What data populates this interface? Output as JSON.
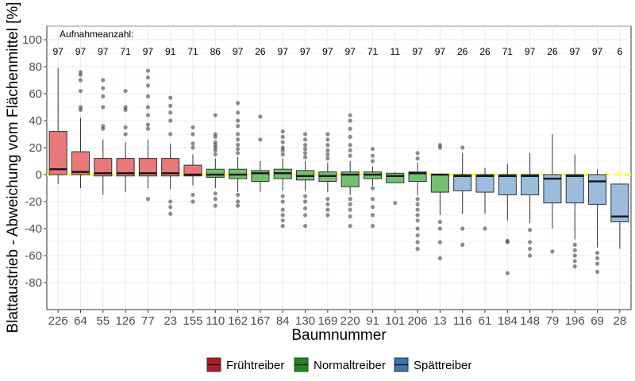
{
  "chart_data": {
    "type": "boxplot",
    "xlabel": "Baumnummer",
    "ylabel": "Blattaustrieb - Abweichung vom Flächenmittel [%]",
    "ylim": [
      -100,
      110
    ],
    "yticks": [
      -80,
      -60,
      -40,
      -20,
      0,
      20,
      40,
      60,
      80,
      100
    ],
    "grid": true,
    "reference_line": 0,
    "annotation": "Aufnahmeanzahl:",
    "legend_position": "bottom",
    "groups": [
      {
        "name": "Frühtreiber",
        "color": "#b2182b",
        "fill": "#e8787a"
      },
      {
        "name": "Normaltreiber",
        "color": "#1a8a1a",
        "fill": "#73c16f"
      },
      {
        "name": "Spättreiber",
        "color": "#3a78b2",
        "fill": "#9bbcdc"
      }
    ],
    "boxes": [
      {
        "tree": "226",
        "count": "97",
        "group": 0,
        "q1": 0,
        "median": 4,
        "q3": 32,
        "lo": -7,
        "hi": 79,
        "out": []
      },
      {
        "tree": "64",
        "count": "97",
        "group": 0,
        "q1": 0,
        "median": 2,
        "q3": 17,
        "lo": -10,
        "hi": 42,
        "out": [
          48,
          50,
          62,
          70,
          74,
          76
        ]
      },
      {
        "tree": "55",
        "count": "97",
        "group": 0,
        "q1": -1,
        "median": 1,
        "q3": 12,
        "lo": -15,
        "hi": 26,
        "out": [
          34,
          36,
          50,
          58,
          64,
          70
        ]
      },
      {
        "tree": "126",
        "count": "71",
        "group": 0,
        "q1": -1,
        "median": 1,
        "q3": 12,
        "lo": -13,
        "hi": 24,
        "out": [
          30,
          35,
          48,
          50,
          62
        ]
      },
      {
        "tree": "77",
        "count": "97",
        "group": 0,
        "q1": -1,
        "median": 1,
        "q3": 12,
        "lo": -10,
        "hi": 26,
        "out": [
          -18,
          34,
          37,
          44,
          50,
          58,
          66,
          72,
          77
        ]
      },
      {
        "tree": "23",
        "count": "91",
        "group": 0,
        "q1": -1,
        "median": 1,
        "q3": 12,
        "lo": -11,
        "hi": 23,
        "out": [
          -20,
          -24,
          -29,
          30,
          40,
          46,
          51,
          57
        ]
      },
      {
        "tree": "155",
        "count": "71",
        "group": 0,
        "q1": -1,
        "median": 0,
        "q3": 7,
        "lo": -8,
        "hi": 15,
        "out": [
          -15,
          -20,
          20,
          23,
          30,
          35
        ]
      },
      {
        "tree": "110",
        "count": "86",
        "group": 1,
        "q1": -2,
        "median": 0,
        "q3": 4,
        "lo": -10,
        "hi": 12,
        "out": [
          -14,
          -18,
          -23,
          15,
          18,
          20,
          22,
          24,
          28,
          30,
          44
        ]
      },
      {
        "tree": "162",
        "count": "97",
        "group": 1,
        "q1": -3,
        "median": 0,
        "q3": 4,
        "lo": -13,
        "hi": 13,
        "out": [
          -15,
          -20,
          -23,
          16,
          19,
          22,
          26,
          30,
          36,
          40,
          46,
          53
        ]
      },
      {
        "tree": "167",
        "count": "26",
        "group": 1,
        "q1": -5,
        "median": 1,
        "q3": 3,
        "lo": -13,
        "hi": 10,
        "out": [
          26,
          43
        ]
      },
      {
        "tree": "84",
        "count": "97",
        "group": 1,
        "q1": -3,
        "median": 1,
        "q3": 4,
        "lo": -12,
        "hi": 12,
        "out": [
          -16,
          -20,
          -26,
          -30,
          -34,
          -38,
          15,
          18,
          20,
          24,
          28,
          32
        ]
      },
      {
        "tree": "130",
        "count": "97",
        "group": 1,
        "q1": -4,
        "median": -1,
        "q3": 3,
        "lo": -12,
        "hi": 10,
        "out": [
          -16,
          -20,
          -25,
          -30,
          -38,
          13,
          16,
          19,
          22,
          26,
          30
        ]
      },
      {
        "tree": "169",
        "count": "97",
        "group": 1,
        "q1": -5,
        "median": -1,
        "q3": 2,
        "lo": -13,
        "hi": 9,
        "out": [
          -18,
          -22,
          -26,
          -30,
          12,
          15,
          18,
          22,
          26,
          30
        ]
      },
      {
        "tree": "220",
        "count": "97",
        "group": 1,
        "q1": -9,
        "median": 0,
        "q3": 2,
        "lo": -15,
        "hi": 10,
        "out": [
          -18,
          -22,
          -26,
          -31,
          -38,
          14,
          18,
          22,
          28,
          34,
          40,
          44
        ]
      },
      {
        "tree": "91",
        "count": "71",
        "group": 1,
        "q1": -3,
        "median": 0,
        "q3": 2,
        "lo": -8,
        "hi": 6,
        "out": [
          -10,
          -18,
          -24,
          -30,
          -38,
          10,
          14,
          19
        ]
      },
      {
        "tree": "101",
        "count": "11",
        "group": 1,
        "q1": -6,
        "median": -1,
        "q3": 1,
        "lo": -6,
        "hi": 2,
        "out": [
          -21
        ]
      },
      {
        "tree": "206",
        "count": "97",
        "group": 1,
        "q1": -5,
        "median": 1,
        "q3": 2,
        "lo": -15,
        "hi": 9,
        "out": [
          -18,
          -22,
          -26,
          -30,
          -34,
          -40,
          -45,
          -50,
          -55,
          12,
          16
        ]
      },
      {
        "tree": "13",
        "count": "97",
        "group": 1,
        "q1": -13,
        "median": 0,
        "q3": 0,
        "lo": -30,
        "hi": 0,
        "out": [
          -35,
          -40,
          -50,
          -62,
          20,
          22
        ]
      },
      {
        "tree": "116",
        "count": "26",
        "group": 2,
        "q1": -12,
        "median": -1,
        "q3": 0,
        "lo": -29,
        "hi": 16,
        "out": [
          -40,
          -52,
          20
        ]
      },
      {
        "tree": "61",
        "count": "26",
        "group": 2,
        "q1": -13,
        "median": -1,
        "q3": 0,
        "lo": -29,
        "hi": 5,
        "out": [
          -40
        ]
      },
      {
        "tree": "184",
        "count": "71",
        "group": 2,
        "q1": -15,
        "median": -1,
        "q3": 0,
        "lo": -34,
        "hi": 8,
        "out": [
          -49,
          -50,
          -73
        ]
      },
      {
        "tree": "148",
        "count": "97",
        "group": 2,
        "q1": -15,
        "median": -1,
        "q3": 0,
        "lo": -36,
        "hi": 16,
        "out": [
          -41,
          -50,
          -55,
          -60
        ]
      },
      {
        "tree": "79",
        "count": "26",
        "group": 2,
        "q1": -21,
        "median": -3,
        "q3": 0,
        "lo": -40,
        "hi": 30,
        "out": [
          -57
        ]
      },
      {
        "tree": "196",
        "count": "97",
        "group": 2,
        "q1": -21,
        "median": -1,
        "q3": 0,
        "lo": -48,
        "hi": 15,
        "out": [
          -52,
          -56,
          -60,
          -64,
          -68
        ]
      },
      {
        "tree": "69",
        "count": "97",
        "group": 2,
        "q1": -22,
        "median": -5,
        "q3": 0,
        "lo": -54,
        "hi": 4,
        "out": [
          -58,
          -62,
          -66,
          -72
        ]
      },
      {
        "tree": "28",
        "count": "6",
        "group": 2,
        "q1": -35,
        "median": -31,
        "q3": -7,
        "lo": -55,
        "hi": -7,
        "out": []
      }
    ]
  }
}
